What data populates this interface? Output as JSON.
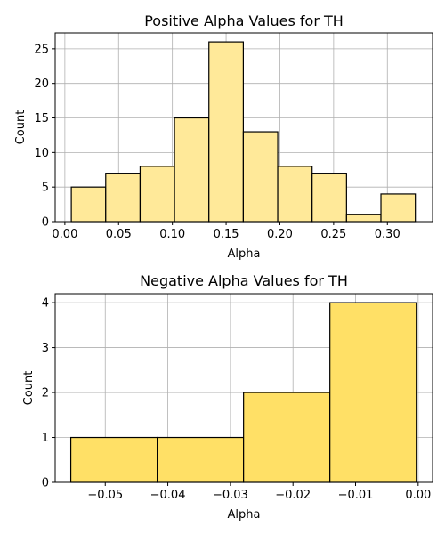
{
  "chart_data": [
    {
      "type": "bar",
      "title": "Positive Alpha Values for TH",
      "xlabel": "Alpha",
      "ylabel": "Count",
      "bin_edges": [
        0.006,
        0.038,
        0.07,
        0.102,
        0.134,
        0.166,
        0.198,
        0.23,
        0.262,
        0.294,
        0.326
      ],
      "values": [
        5,
        7,
        8,
        15,
        26,
        13,
        8,
        7,
        1,
        4
      ],
      "xlim": [
        -0.009,
        0.342
      ],
      "ylim": [
        0,
        27.3
      ],
      "xticks": [
        0.0,
        0.05,
        0.1,
        0.15,
        0.2,
        0.25,
        0.3
      ],
      "xtick_labels": [
        "0.00",
        "0.05",
        "0.10",
        "0.15",
        "0.20",
        "0.25",
        "0.30"
      ],
      "yticks": [
        0,
        5,
        10,
        15,
        20,
        25
      ],
      "ytick_labels": [
        "0",
        "5",
        "10",
        "15",
        "20",
        "25"
      ],
      "bar_color": "#ffe999",
      "edge_color": "#000000",
      "grid": true
    },
    {
      "type": "bar",
      "title": "Negative Alpha Values for TH",
      "xlabel": "Alpha",
      "ylabel": "Count",
      "bin_edges": [
        -0.0555,
        -0.0417,
        -0.0279,
        -0.0141,
        -0.0003
      ],
      "values": [
        1,
        1,
        2,
        4
      ],
      "xlim": [
        -0.058,
        0.0023
      ],
      "ylim": [
        0,
        4.2
      ],
      "xticks": [
        -0.05,
        -0.04,
        -0.03,
        -0.02,
        -0.01,
        0.0
      ],
      "xtick_labels": [
        "−0.05",
        "−0.04",
        "−0.03",
        "−0.02",
        "−0.01",
        "0.00"
      ],
      "yticks": [
        0,
        1,
        2,
        3,
        4
      ],
      "ytick_labels": [
        "0",
        "1",
        "2",
        "3",
        "4"
      ],
      "bar_color": "#ffe066",
      "edge_color": "#000000",
      "grid": true
    }
  ]
}
